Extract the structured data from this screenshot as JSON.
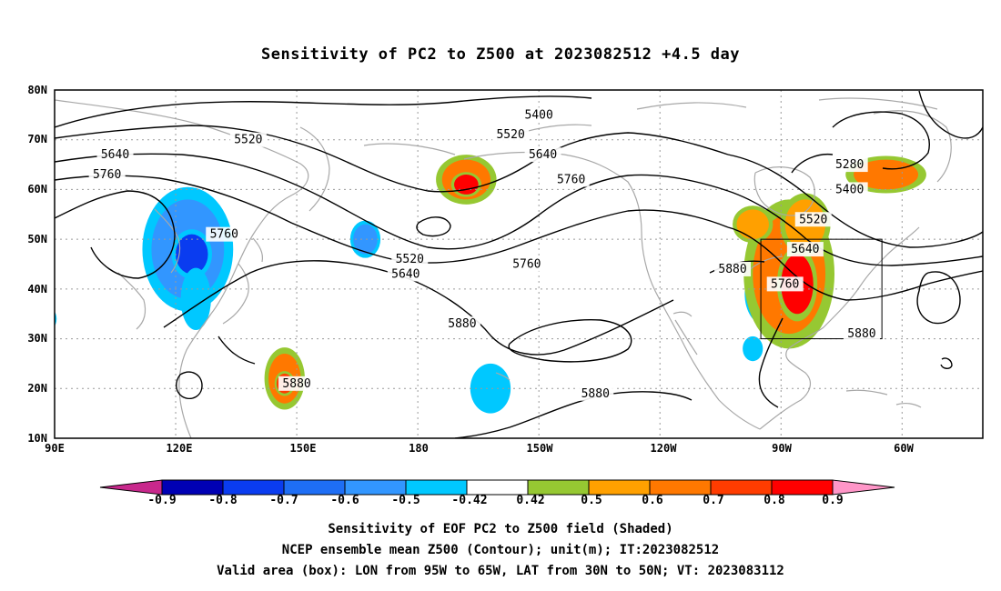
{
  "title": "Sensitivity of PC2 to Z500 at 2023082512 +4.5 day",
  "map": {
    "lat_ticks": [
      "80N",
      "70N",
      "60N",
      "50N",
      "40N",
      "30N",
      "20N",
      "10N"
    ],
    "lon_ticks": [
      "90E",
      "120E",
      "150E",
      "180",
      "150W",
      "120W",
      "90W",
      "60W"
    ],
    "grid": true,
    "box": {
      "lon_from": "95W",
      "lon_to": "65W",
      "lat_from": "30N",
      "lat_to": "50N"
    },
    "contour_labels": [
      {
        "text": "5400",
        "lon": 210,
        "lat": 75
      },
      {
        "text": "5520",
        "lon": 138,
        "lat": 70
      },
      {
        "text": "5520",
        "lon": 203,
        "lat": 71
      },
      {
        "text": "5640",
        "lon": 105,
        "lat": 67
      },
      {
        "text": "5640",
        "lon": 211,
        "lat": 67
      },
      {
        "text": "5760",
        "lon": 103,
        "lat": 63
      },
      {
        "text": "5760",
        "lon": 218,
        "lat": 62
      },
      {
        "text": "5760",
        "lon": 132,
        "lat": 51
      },
      {
        "text": "5760",
        "lon": 207,
        "lat": 45
      },
      {
        "text": "5520",
        "lon": 178,
        "lat": 46
      },
      {
        "text": "5640",
        "lon": 177,
        "lat": 43
      },
      {
        "text": "5880",
        "lon": 191,
        "lat": 33
      },
      {
        "text": "5880",
        "lon": 150,
        "lat": 21
      },
      {
        "text": "5880",
        "lon": 224,
        "lat": 19
      },
      {
        "text": "5880",
        "lon": 258,
        "lat": 44
      },
      {
        "text": "5280",
        "lon": 287,
        "lat": 65
      },
      {
        "text": "5400",
        "lon": 287,
        "lat": 60
      },
      {
        "text": "5520",
        "lon": 278,
        "lat": 54
      },
      {
        "text": "5640",
        "lon": 276,
        "lat": 48
      },
      {
        "text": "5760",
        "lon": 271,
        "lat": 41
      },
      {
        "text": "5880",
        "lon": 290,
        "lat": 31
      }
    ],
    "shaded_regions": [
      {
        "lon": 123,
        "lat": 48,
        "rx": 9,
        "ry": 10,
        "value": -0.6
      },
      {
        "lon": 124,
        "lat": 47,
        "rx": 4,
        "ry": 4,
        "value": -0.8
      },
      {
        "lon": 125,
        "lat": 38,
        "rx": 3,
        "ry": 5,
        "value": -0.5
      },
      {
        "lon": 88,
        "lat": 34,
        "rx": 2,
        "ry": 2,
        "value": -0.5
      },
      {
        "lon": 167,
        "lat": 50,
        "rx": 3,
        "ry": 3,
        "value": -0.6
      },
      {
        "lon": 198,
        "lat": 20,
        "rx": 4,
        "ry": 4,
        "value": -0.5
      },
      {
        "lon": 266,
        "lat": 39,
        "rx": 4,
        "ry": 5,
        "value": -0.7
      },
      {
        "lon": 266,
        "lat": 40,
        "rx": 2,
        "ry": 2,
        "value": -0.8
      },
      {
        "lon": 263,
        "lat": 28,
        "rx": 2,
        "ry": 2,
        "value": -0.5
      },
      {
        "lon": 147,
        "lat": 22,
        "rx": 4,
        "ry": 5,
        "value": 0.6
      },
      {
        "lon": 147,
        "lat": 21,
        "rx": 2,
        "ry": 2,
        "value": 0.7
      },
      {
        "lon": 192,
        "lat": 62,
        "rx": 6,
        "ry": 4,
        "value": 0.6
      },
      {
        "lon": 192,
        "lat": 61,
        "rx": 3,
        "ry": 2,
        "value": 0.8
      },
      {
        "lon": 272,
        "lat": 43,
        "rx": 9,
        "ry": 12,
        "value": 0.6
      },
      {
        "lon": 274,
        "lat": 41,
        "rx": 4,
        "ry": 6,
        "value": 0.8
      },
      {
        "lon": 276,
        "lat": 53,
        "rx": 5,
        "ry": 5,
        "value": 0.5
      },
      {
        "lon": 296,
        "lat": 63,
        "rx": 8,
        "ry": 3,
        "value": 0.6
      },
      {
        "lon": 263,
        "lat": 53,
        "rx": 4,
        "ry": 3,
        "value": 0.5
      }
    ]
  },
  "colorbar": {
    "labels": [
      "-0.9",
      "-0.8",
      "-0.7",
      "-0.6",
      "-0.5",
      "-0.42",
      "0.42",
      "0.5",
      "0.6",
      "0.7",
      "0.8",
      "0.9"
    ],
    "colors": [
      "#0000b4",
      "#0a3cf0",
      "#1e6ef5",
      "#3296ff",
      "#00c8ff",
      "#ffffff",
      "#96c832",
      "#ffa000",
      "#ff7800",
      "#ff3c00",
      "#ff0000"
    ],
    "low_end": "#c8288c",
    "high_end": "#ff96c8"
  },
  "footer": {
    "line1": "Sensitivity of EOF PC2 to Z500 field (Shaded)",
    "line2": "NCEP ensemble mean Z500 (Contour); unit(m); IT:2023082512",
    "line3": "Valid area (box): LON from 95W to 65W, LAT from 30N to 50N; VT: 2023083112"
  }
}
